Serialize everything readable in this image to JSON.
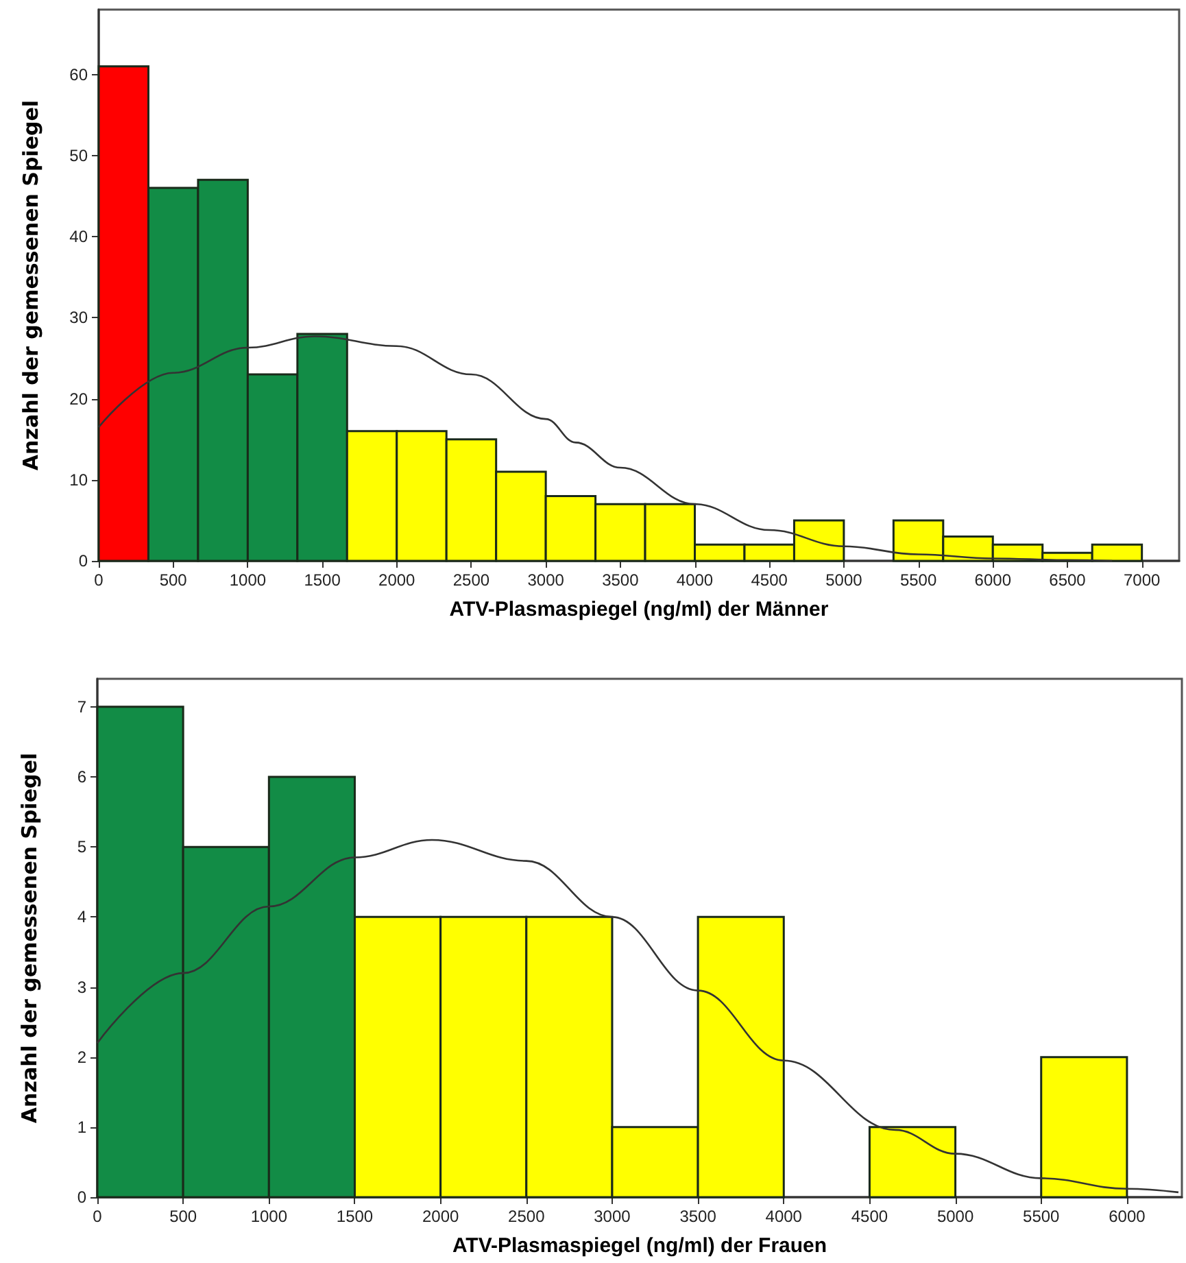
{
  "chart_data": [
    {
      "type": "histogram",
      "xlabel": "ATV-Plasmaspiegel (ng/ml) der Männer",
      "ylabel": "Anzahl der gemessenen Spiegel",
      "bins": [
        0,
        333.3,
        666.7,
        1000,
        1333.3,
        1666.7,
        2000,
        2333.3,
        2666.7,
        3000,
        3333.3,
        3666.7,
        4000,
        4333.3,
        4666.7,
        5000,
        5333.3,
        5666.7,
        6000,
        6333.3,
        6666.7,
        7000
      ],
      "values": [
        61,
        46,
        47,
        23,
        28,
        16,
        16,
        15,
        11,
        8,
        7,
        7,
        2,
        2,
        5,
        0,
        5,
        3,
        2,
        1,
        2
      ],
      "colors": [
        "#ff0000",
        "#128c46",
        "#128c46",
        "#128c46",
        "#128c46",
        "#ffff00",
        "#ffff00",
        "#ffff00",
        "#ffff00",
        "#ffff00",
        "#ffff00",
        "#ffff00",
        "#ffff00",
        "#ffff00",
        "#ffff00",
        null,
        "#ffff00",
        "#ffff00",
        "#ffff00",
        "#ffff00",
        "#ffff00"
      ],
      "series": [
        {
          "type": "line",
          "color": "#333333",
          "x": [
            0,
            500,
            1000,
            1450,
            2000,
            2500,
            3000,
            3200,
            3500,
            4000,
            4500,
            5000,
            5500,
            6000,
            6500,
            6800
          ],
          "values": [
            16.5,
            23.2,
            26.3,
            27.7,
            26.5,
            23,
            17.5,
            14.6,
            11.5,
            7,
            3.8,
            1.8,
            0.8,
            0.3,
            0.1,
            0
          ]
        }
      ],
      "xlim": [
        0,
        7250
      ],
      "xticks": [
        0,
        500,
        1000,
        1500,
        2000,
        2500,
        3000,
        3500,
        4000,
        4500,
        5000,
        5500,
        6000,
        6500,
        7000
      ],
      "ylim": [
        0,
        68
      ],
      "yticks": [
        0,
        10,
        20,
        30,
        40,
        50,
        60
      ],
      "grid": false
    },
    {
      "type": "histogram",
      "xlabel": "ATV-Plasmaspiegel (ng/ml) der Frauen",
      "ylabel": "Anzahl der gemessenen Spiegel",
      "bins": [
        0,
        500,
        1000,
        1500,
        2000,
        2500,
        3000,
        3500,
        4000,
        4500,
        5000,
        5500,
        6000
      ],
      "values": [
        7,
        5,
        6,
        4,
        4,
        4,
        1,
        4,
        0,
        1,
        0,
        2
      ],
      "colors": [
        "#128c46",
        "#128c46",
        "#128c46",
        "#ffff00",
        "#ffff00",
        "#ffff00",
        "#ffff00",
        "#ffff00",
        null,
        "#ffff00",
        null,
        "#ffff00"
      ],
      "series": [
        {
          "type": "line",
          "color": "#333333",
          "x": [
            0,
            500,
            1000,
            1500,
            1950,
            2500,
            3000,
            3500,
            4000,
            4650,
            5000,
            5500,
            6000,
            6300
          ],
          "values": [
            2.2,
            3.2,
            4.15,
            4.85,
            5.1,
            4.8,
            4,
            2.95,
            1.95,
            0.96,
            0.62,
            0.27,
            0.12,
            0.07
          ]
        }
      ],
      "xlim": [
        0,
        6320
      ],
      "xticks": [
        0,
        500,
        1000,
        1500,
        2000,
        2500,
        3000,
        3500,
        4000,
        4500,
        5000,
        5500,
        6000
      ],
      "ylim": [
        0,
        7.4
      ],
      "yticks": [
        0,
        1,
        2,
        3,
        4,
        5,
        6,
        7
      ],
      "grid": false
    }
  ]
}
